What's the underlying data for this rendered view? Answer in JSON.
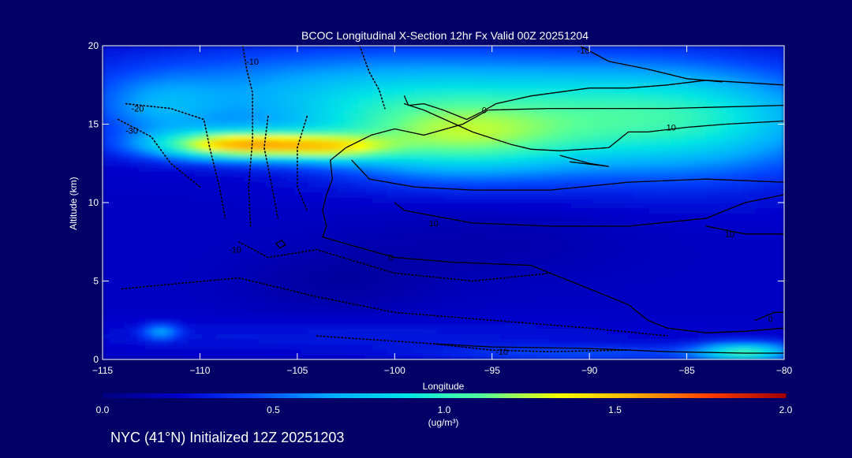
{
  "chart_data": {
    "type": "heatmap",
    "title": "BCOC Longitudinal X-Section 12hr  Fx Valid 00Z 20251204",
    "xlabel": "Longitude",
    "ylabel": "Altitude (km)",
    "xlim": [
      -115,
      -80
    ],
    "ylim": [
      0,
      20
    ],
    "x_ticks": [
      -115,
      -110,
      -105,
      -100,
      -95,
      -90,
      -85,
      -80
    ],
    "y_ticks": [
      0,
      5,
      10,
      15,
      20
    ],
    "x_tick_labels": [
      "−115",
      "−110",
      "−105",
      "−100",
      "−95",
      "−90",
      "−85",
      "−80"
    ],
    "y_tick_labels": [
      "0",
      "5",
      "10",
      "15",
      "20"
    ],
    "colorbar": {
      "min": 0.0,
      "max": 2.0,
      "ticks": [
        0.0,
        0.5,
        1.0,
        1.5,
        2.0
      ],
      "tick_labels": [
        "0.0",
        "0.5",
        "1.0",
        "1.5",
        "2.0"
      ],
      "unit_label": "(ug/m³)",
      "colors": [
        "#000080",
        "#0000cc",
        "#0044ff",
        "#00aaff",
        "#00e5e5",
        "#55ff9a",
        "#f5ff00",
        "#ffb000",
        "#ff3c00",
        "#a00000"
      ]
    },
    "field": {
      "description": "BC+OC concentration",
      "background": 0.2,
      "blobs": [
        {
          "x": -108,
          "y": 13.7,
          "sx": 4.5,
          "sy": 0.9,
          "v": 1.15
        },
        {
          "x": -103,
          "y": 13.5,
          "sx": 3.0,
          "sy": 0.8,
          "v": 0.45
        },
        {
          "x": -97,
          "y": 14.0,
          "sx": 7.0,
          "sy": 2.5,
          "v": 0.75
        },
        {
          "x": -85,
          "y": 15.0,
          "sx": 8.0,
          "sy": 3.5,
          "v": 0.65
        },
        {
          "x": -100,
          "y": 17.0,
          "sx": 15.0,
          "sy": 3.0,
          "v": 0.55
        },
        {
          "x": -112,
          "y": 16.0,
          "sx": 3.0,
          "sy": 2.0,
          "v": 0.25
        },
        {
          "x": -90,
          "y": 0.4,
          "sx": 8.0,
          "sy": 0.5,
          "v": 0.25
        },
        {
          "x": -82,
          "y": 0.5,
          "sx": 2.5,
          "sy": 0.6,
          "v": 0.75
        },
        {
          "x": -112,
          "y": 1.8,
          "sx": 1.0,
          "sy": 0.5,
          "v": 0.4
        },
        {
          "x": -102,
          "y": 1.5,
          "sx": 15.0,
          "sy": 1.0,
          "v": 0.1
        },
        {
          "x": -103,
          "y": 5.0,
          "sx": 5.0,
          "sy": 2.0,
          "v": -0.1
        },
        {
          "x": -95,
          "y": 7.5,
          "sx": 8.0,
          "sy": 2.5,
          "v": -0.07
        }
      ]
    },
    "contours": [
      {
        "label": "-10",
        "style": "dotted",
        "points": [
          [
            -107.8,
            20
          ],
          [
            -107.6,
            18.5
          ],
          [
            -107.3,
            17
          ],
          [
            -107.3,
            14
          ],
          [
            -107.5,
            11
          ],
          [
            -107.4,
            8.5
          ]
        ],
        "label_at": [
          -107.3,
          19
        ]
      },
      {
        "label": "-20",
        "style": "dotted",
        "points": [
          [
            -113.8,
            16.3
          ],
          [
            -111.5,
            16
          ],
          [
            -109.8,
            15.3
          ],
          [
            -109.5,
            13.5
          ],
          [
            -109,
            11
          ],
          [
            -108.7,
            9
          ]
        ],
        "label_at": [
          -113.2,
          16
        ]
      },
      {
        "label": "-30",
        "style": "dotted",
        "points": [
          [
            -114.2,
            15.3
          ],
          [
            -112.5,
            14.2
          ],
          [
            -111.5,
            12.5
          ],
          [
            -110,
            11
          ]
        ],
        "label_at": [
          -113.5,
          14.6
        ]
      },
      {
        "label": "",
        "style": "dotted",
        "points": [
          [
            -104.5,
            15.5
          ],
          [
            -105,
            13.5
          ],
          [
            -105,
            11
          ],
          [
            -104.5,
            9.5
          ]
        ],
        "label_at": null
      },
      {
        "label": "",
        "style": "dotted",
        "points": [
          [
            -106.5,
            15.5
          ],
          [
            -106.7,
            13.5
          ],
          [
            -106.3,
            11
          ],
          [
            -106,
            9
          ]
        ],
        "label_at": null
      },
      {
        "label": "-10",
        "style": "dotted",
        "points": [
          [
            -108,
            7.5
          ],
          [
            -106.5,
            6.5
          ],
          [
            -104,
            7
          ],
          [
            -100,
            5.5
          ],
          [
            -96,
            5
          ],
          [
            -92,
            5.5
          ]
        ],
        "label_at": [
          -108.2,
          7
        ]
      },
      {
        "label": "-10",
        "style": "dotted",
        "points": [
          [
            -114,
            4.5
          ],
          [
            -108,
            5.2
          ],
          [
            -104,
            4
          ],
          [
            -100,
            3
          ],
          [
            -95,
            2.5
          ],
          [
            -90,
            2
          ],
          [
            -86,
            1.5
          ]
        ],
        "label_at": null
      },
      {
        "label": "-10",
        "style": "dotted",
        "points": [
          [
            -104,
            1.5
          ],
          [
            -98,
            1
          ],
          [
            -95,
            0.6
          ],
          [
            -92,
            0.5
          ],
          [
            -88,
            0.6
          ]
        ],
        "label_at": [
          -94.5,
          0.5
        ]
      },
      {
        "label": "",
        "style": "dotted",
        "points": [
          [
            -101.8,
            20
          ],
          [
            -101.3,
            18.3
          ],
          [
            -100.8,
            17.2
          ],
          [
            -100.5,
            16
          ]
        ],
        "label_at": null
      },
      {
        "label": "0",
        "style": "solid",
        "points": [
          [
            -99.5,
            16.8
          ],
          [
            -99.3,
            16.2
          ],
          [
            -98.5,
            16.3
          ],
          [
            -97.5,
            15.9
          ],
          [
            -96.3,
            15.3
          ],
          [
            -95.5,
            15.8
          ],
          [
            -94.8,
            16.3
          ],
          [
            -93,
            16.8
          ],
          [
            -90,
            17.3
          ],
          [
            -88,
            17.3
          ],
          [
            -86,
            17.5
          ],
          [
            -84,
            17.8
          ],
          [
            -80,
            17.5
          ]
        ],
        "label_at": null
      },
      {
        "label": "0",
        "style": "solid",
        "points": [
          [
            -80,
            16.2
          ],
          [
            -86,
            16.0
          ],
          [
            -92,
            16.0
          ],
          [
            -95.2,
            15.9
          ],
          [
            -96.5,
            15
          ],
          [
            -98.5,
            14.3
          ],
          [
            -100,
            14.7
          ],
          [
            -101.2,
            14.3
          ],
          [
            -102.5,
            13.5
          ],
          [
            -103.3,
            12.7
          ],
          [
            -103.2,
            11.5
          ],
          [
            -103.5,
            10.5
          ],
          [
            -103.7,
            9.5
          ],
          [
            -103.5,
            8.5
          ],
          [
            -103.7,
            7.8
          ]
        ],
        "label_at": [
          -95.4,
          15.9
        ]
      },
      {
        "label": "-10",
        "style": "solid",
        "points": [
          [
            -90.5,
            20
          ],
          [
            -89,
            19
          ],
          [
            -87,
            18.5
          ],
          [
            -85,
            17.9
          ],
          [
            -83.2,
            17.7
          ]
        ],
        "label_at": [
          -90.3,
          19.7
        ]
      },
      {
        "label": "10",
        "style": "solid",
        "points": [
          [
            -102.2,
            12.7
          ],
          [
            -101.3,
            11.5
          ],
          [
            -99,
            11.0
          ],
          [
            -96,
            10.8
          ],
          [
            -92,
            10.8
          ],
          [
            -88,
            11.3
          ],
          [
            -84,
            11.5
          ],
          [
            -80,
            11.3
          ]
        ],
        "label_at": null
      },
      {
        "label": "10",
        "style": "solid",
        "points": [
          [
            -99.5,
            16.3
          ],
          [
            -98.5,
            15.9
          ],
          [
            -96,
            14.5
          ],
          [
            -94,
            13.7
          ],
          [
            -93,
            13.4
          ],
          [
            -91.5,
            13.3
          ],
          [
            -89,
            13.5
          ],
          [
            -88,
            14.5
          ],
          [
            -87,
            14.5
          ],
          [
            -85,
            14.8
          ],
          [
            -83,
            15.0
          ],
          [
            -80,
            15.2
          ]
        ],
        "label_at": [
          -85.8,
          14.8
        ]
      },
      {
        "label": "",
        "style": "solid",
        "points": [
          [
            -91.5,
            13.0
          ],
          [
            -90,
            12.5
          ],
          [
            -89,
            12.3
          ],
          [
            -91,
            12.6
          ]
        ],
        "label_at": null
      },
      {
        "label": "10",
        "style": "solid",
        "points": [
          [
            -100,
            10
          ],
          [
            -99.5,
            9.5
          ],
          [
            -96,
            8.7
          ],
          [
            -92,
            8.5
          ],
          [
            -88,
            8.5
          ],
          [
            -84,
            9.0
          ],
          [
            -82,
            10
          ],
          [
            -80,
            10.5
          ]
        ],
        "label_at": [
          -98,
          8.7
        ]
      },
      {
        "label": "10",
        "style": "solid",
        "points": [
          [
            -84,
            8.5
          ],
          [
            -82,
            8.0
          ],
          [
            -80,
            8.0
          ]
        ],
        "label_at": [
          -82.8,
          8.0
        ]
      },
      {
        "label": "0",
        "style": "solid",
        "points": [
          [
            -103.7,
            7.8
          ],
          [
            -102,
            7.2
          ],
          [
            -100,
            6.5
          ],
          [
            -97,
            6.2
          ],
          [
            -93,
            6.0
          ],
          [
            -90,
            4.5
          ],
          [
            -88,
            3.5
          ],
          [
            -87,
            2.5
          ],
          [
            -86,
            2.0
          ],
          [
            -84,
            1.7
          ],
          [
            -82,
            1.8
          ],
          [
            -80,
            2.0
          ]
        ],
        "label_at": [
          -100.2,
          6.5
        ]
      },
      {
        "label": "0",
        "style": "solid",
        "points": [
          [
            -81.5,
            2.5
          ],
          [
            -80.5,
            3.0
          ],
          [
            -80,
            3.0
          ]
        ],
        "label_at": [
          -80.7,
          2.6
        ]
      },
      {
        "label": "10",
        "style": "solid",
        "points": [
          [
            -98,
            1.0
          ],
          [
            -95,
            0.8
          ],
          [
            -90,
            0.7
          ],
          [
            -86,
            0.5
          ],
          [
            -82,
            0.4
          ],
          [
            -80,
            0.4
          ]
        ],
        "label_at": null
      },
      {
        "label": "0",
        "style": "solid",
        "points": [
          [
            -105.8,
            7.6
          ],
          [
            -105.6,
            7.3
          ],
          [
            -105.9,
            7.1
          ],
          [
            -106.1,
            7.4
          ],
          [
            -105.8,
            7.6
          ]
        ],
        "label_at": null
      }
    ],
    "grid": false,
    "legend": "none"
  },
  "footer": {
    "caption": "NYC (41°N) Initialized 12Z 20251203"
  }
}
